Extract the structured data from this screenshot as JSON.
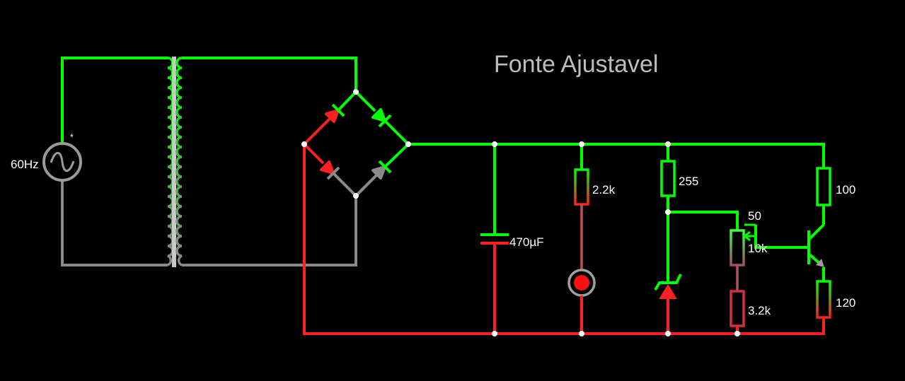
{
  "title": "Fonte Ajustavel",
  "colors": {
    "background": "#000000",
    "high_voltage": "#00ff00",
    "low_voltage": "#ff0000",
    "neutral": "#808080",
    "node": "#ffffff",
    "label": "#ffffff",
    "title": "#bdbdbd"
  },
  "components": {
    "source": {
      "label": "60Hz",
      "marker": "*",
      "icon": "ac-source-icon"
    },
    "capacitor": {
      "label": "470µF"
    },
    "r_led": {
      "label": "2.2k"
    },
    "r_zener": {
      "label": "255"
    },
    "potentiometer": {
      "label_top": "50",
      "label_value": "10k"
    },
    "r_pot_bottom": {
      "label": "3.2k"
    },
    "r_collector": {
      "label": "100"
    },
    "r_emitter": {
      "label": "120"
    }
  }
}
